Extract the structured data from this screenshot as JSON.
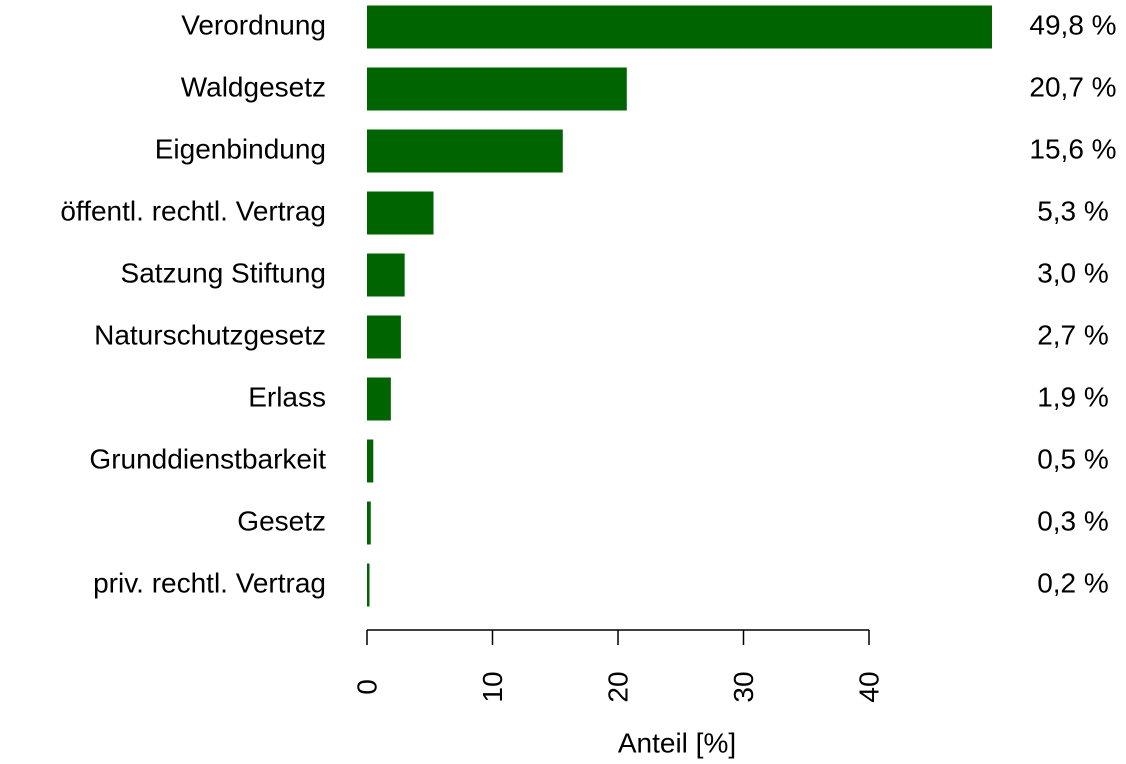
{
  "chart_data": {
    "type": "barh",
    "categories": [
      "Verordnung",
      "Waldgesetz",
      "Eigenbindung",
      "öffentl. rechtl. Vertrag",
      "Satzung Stiftung",
      "Naturschutzgesetz",
      "Erlass",
      "Grunddienstbarkeit",
      "Gesetz",
      "priv. rechtl. Vertrag"
    ],
    "values": [
      49.8,
      20.7,
      15.6,
      5.3,
      3.0,
      2.7,
      1.9,
      0.5,
      0.3,
      0.2
    ],
    "value_labels": [
      "49,8 %",
      "20,7 %",
      "15,6 %",
      "5,3 %",
      "3,0 %",
      "2,7 %",
      "1,9 %",
      "0,5 %",
      "0,3 %",
      "0,2 %"
    ],
    "color": "#006400",
    "xlabel": "Anteil [%]",
    "xlim": [
      0,
      40
    ],
    "xticks": [
      0,
      10,
      20,
      30,
      40
    ]
  }
}
